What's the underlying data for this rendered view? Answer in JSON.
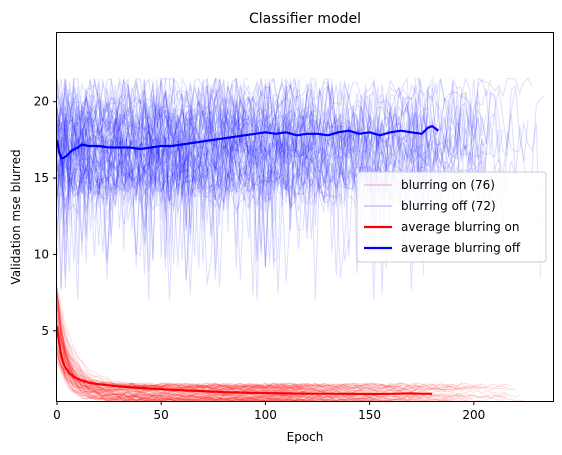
{
  "chart_data": {
    "type": "line",
    "title": "Classifier model",
    "xlabel": "Epoch",
    "ylabel": "Validation mse blurred",
    "xlim": [
      0,
      238
    ],
    "ylim": [
      0.4,
      24.5
    ],
    "xticks": [
      0,
      50,
      100,
      150,
      200
    ],
    "yticks": [
      5,
      10,
      15,
      20
    ],
    "grid": false,
    "legend_position": "center-right",
    "colors": {
      "blurring_on": "#ff0000",
      "blurring_off": "#0000ff"
    },
    "series": [
      {
        "name": "average blurring on",
        "color": "#ff0000",
        "x": [
          0,
          1,
          2,
          3,
          4,
          5,
          6,
          8,
          10,
          12,
          15,
          20,
          25,
          30,
          40,
          50,
          60,
          70,
          80,
          90,
          100,
          110,
          120,
          130,
          140,
          150,
          160,
          170,
          175,
          180
        ],
        "y": [
          5.3,
          4.2,
          3.4,
          2.9,
          2.6,
          2.4,
          2.2,
          2.0,
          1.85,
          1.75,
          1.6,
          1.5,
          1.42,
          1.35,
          1.25,
          1.18,
          1.1,
          1.05,
          0.98,
          0.95,
          0.92,
          0.9,
          0.88,
          0.88,
          0.87,
          0.86,
          0.87,
          0.9,
          0.88,
          0.87
        ]
      },
      {
        "name": "average blurring off",
        "color": "#0000ff",
        "x": [
          0,
          1,
          2,
          3,
          4,
          5,
          7,
          10,
          12,
          15,
          20,
          25,
          30,
          35,
          40,
          45,
          50,
          55,
          60,
          70,
          80,
          90,
          95,
          100,
          105,
          110,
          115,
          120,
          125,
          130,
          135,
          140,
          145,
          150,
          155,
          160,
          165,
          170,
          175,
          178,
          180,
          183
        ],
        "y": [
          17.5,
          16.7,
          16.3,
          16.3,
          16.4,
          16.5,
          16.8,
          17.0,
          17.2,
          17.1,
          17.1,
          17.0,
          17.0,
          17.0,
          16.9,
          17.0,
          17.1,
          17.1,
          17.2,
          17.4,
          17.6,
          17.8,
          17.9,
          18.0,
          17.9,
          18.0,
          17.8,
          17.9,
          17.9,
          17.8,
          18.0,
          18.1,
          17.9,
          18.0,
          17.8,
          18.0,
          18.1,
          18.0,
          17.9,
          18.3,
          18.4,
          18.1
        ]
      }
    ],
    "legend": [
      {
        "label": "blurring on (76)",
        "color": "#ff0000",
        "style": "thin"
      },
      {
        "label": "blurring off (72)",
        "color": "#0000ff",
        "style": "thin"
      },
      {
        "label": "average blurring on",
        "color": "#ff0000",
        "style": "thick"
      },
      {
        "label": "average blurring off",
        "color": "#0000ff",
        "style": "thick"
      }
    ],
    "individual_runs": {
      "blurring_on": {
        "count": 76,
        "color": "#ff0000",
        "start_y_range": [
          3.0,
          8.0
        ],
        "end_y_range": [
          0.4,
          1.5
        ],
        "max_epoch": 225
      },
      "blurring_off": {
        "count": 72,
        "color": "#0000ff",
        "y_range": [
          7.0,
          21.5
        ],
        "max_epoch": 238
      }
    }
  }
}
